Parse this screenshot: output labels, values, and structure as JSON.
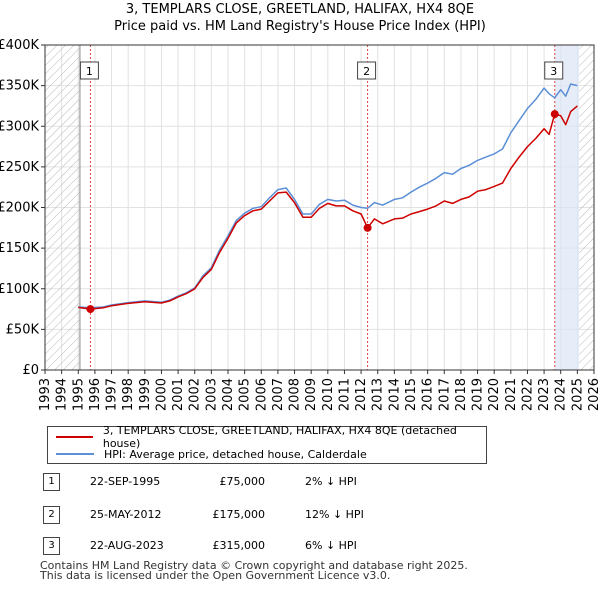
{
  "title_line1": "3, TEMPLARS CLOSE, GREETLAND, HALIFAX, HX4 8QE",
  "title_line2": "Price paid vs. HM Land Registry's House Price Index (HPI)",
  "chart_data": {
    "type": "line",
    "xlim": [
      1993,
      2026
    ],
    "ylim": [
      0,
      400000
    ],
    "y_ticks": [
      {
        "value": 0,
        "label": "£0"
      },
      {
        "value": 50000,
        "label": "£50K"
      },
      {
        "value": 100000,
        "label": "£100K"
      },
      {
        "value": 150000,
        "label": "£150K"
      },
      {
        "value": 200000,
        "label": "£200K"
      },
      {
        "value": 250000,
        "label": "£250K"
      },
      {
        "value": 300000,
        "label": "£300K"
      },
      {
        "value": 350000,
        "label": "£350K"
      },
      {
        "value": 400000,
        "label": "£400K"
      }
    ],
    "x_ticks": [
      1993,
      1994,
      1995,
      1996,
      1997,
      1998,
      1999,
      2000,
      2001,
      2002,
      2003,
      2004,
      2005,
      2006,
      2007,
      2008,
      2009,
      2010,
      2011,
      2012,
      2013,
      2014,
      2015,
      2016,
      2017,
      2018,
      2019,
      2020,
      2021,
      2022,
      2023,
      2024,
      2025,
      2026
    ],
    "x_tick_labels": [
      "1993",
      "1994",
      "1995",
      "1996",
      "1997",
      "1998",
      "1999",
      "2000",
      "2001",
      "2002",
      "2003",
      "2004",
      "2005",
      "2006",
      "2007",
      "2008",
      "2009",
      "2010",
      "2011",
      "2012",
      "2013",
      "2014",
      "2015",
      "2016",
      "2017",
      "2018",
      "2019",
      "2020",
      "2021",
      "2022",
      "2023",
      "2024",
      "2025",
      "2026"
    ],
    "hatched_ranges": [
      [
        1993,
        1995.1
      ],
      [
        2025.1,
        2026
      ]
    ],
    "shaded_range": [
      2023.64,
      2025.1
    ],
    "series": [
      {
        "name": "3, TEMPLARS CLOSE, GREETLAND, HALIFAX, HX4 8QE (detached house)",
        "color": "#cc0000",
        "x": [
          1995.0,
          1995.73,
          1996.5,
          1997.0,
          1998.0,
          1999.0,
          2000.0,
          2000.5,
          2001.0,
          2001.5,
          2002.0,
          2002.5,
          2003.0,
          2003.5,
          2004.0,
          2004.5,
          2005.0,
          2005.5,
          2006.0,
          2006.5,
          2007.0,
          2007.5,
          2008.0,
          2008.5,
          2009.0,
          2009.5,
          2010.0,
          2010.5,
          2011.0,
          2011.5,
          2012.0,
          2012.39,
          2012.8,
          2013.3,
          2014.0,
          2014.5,
          2015.0,
          2015.5,
          2016.0,
          2016.5,
          2017.0,
          2017.5,
          2018.0,
          2018.5,
          2019.0,
          2019.5,
          2020.0,
          2020.5,
          2021.0,
          2021.5,
          2022.0,
          2022.5,
          2023.0,
          2023.3,
          2023.64,
          2024.0,
          2024.3,
          2024.6,
          2025.0
        ],
        "values": [
          77000,
          75000,
          76500,
          79000,
          82000,
          84000,
          82500,
          85000,
          90000,
          94000,
          100000,
          114000,
          124000,
          145000,
          162000,
          181000,
          190000,
          196000,
          198000,
          208000,
          218000,
          219000,
          206000,
          188000,
          188000,
          199000,
          205000,
          202000,
          202000,
          196000,
          192000,
          175000,
          186000,
          180000,
          186000,
          187000,
          192000,
          195000,
          198000,
          202000,
          208000,
          205000,
          210000,
          213000,
          220000,
          222000,
          226000,
          230000,
          248000,
          262000,
          275000,
          285000,
          297000,
          290000,
          315000,
          313000,
          302000,
          318000,
          325000
        ]
      },
      {
        "name": "HPI: Average price, detached house, Calderdale",
        "color": "#5b8fd6",
        "x": [
          1995.0,
          1995.73,
          1996.5,
          1997.0,
          1998.0,
          1999.0,
          2000.0,
          2000.5,
          2001.0,
          2001.5,
          2002.0,
          2002.5,
          2003.0,
          2003.5,
          2004.0,
          2004.5,
          2005.0,
          2005.5,
          2006.0,
          2006.5,
          2007.0,
          2007.5,
          2008.0,
          2008.5,
          2009.0,
          2009.5,
          2010.0,
          2010.5,
          2011.0,
          2011.5,
          2012.0,
          2012.39,
          2012.8,
          2013.3,
          2014.0,
          2014.5,
          2015.0,
          2015.5,
          2016.0,
          2016.5,
          2017.0,
          2017.5,
          2018.0,
          2018.5,
          2019.0,
          2019.5,
          2020.0,
          2020.5,
          2021.0,
          2021.5,
          2022.0,
          2022.5,
          2023.0,
          2023.3,
          2023.64,
          2024.0,
          2024.3,
          2024.6,
          2025.0
        ],
        "values": [
          77500,
          76500,
          77500,
          80000,
          83000,
          85000,
          83500,
          86000,
          91000,
          95000,
          101000,
          116000,
          126000,
          148000,
          165000,
          184000,
          193000,
          199000,
          201000,
          212000,
          222000,
          224000,
          210000,
          192000,
          192000,
          204000,
          210000,
          208000,
          209000,
          203000,
          200000,
          199000,
          206000,
          203000,
          210000,
          212000,
          219000,
          225000,
          230000,
          236000,
          243000,
          241000,
          248000,
          252000,
          258000,
          262000,
          266000,
          272000,
          292000,
          307000,
          322000,
          333000,
          347000,
          340000,
          335000,
          345000,
          337000,
          352000,
          350000
        ]
      }
    ],
    "transactions": [
      {
        "id": "1",
        "x": 1995.73,
        "value": 75000
      },
      {
        "id": "2",
        "x": 2012.39,
        "value": 175000
      },
      {
        "id": "3",
        "x": 2023.64,
        "value": 315000
      }
    ]
  },
  "legend": {
    "red_label": "3, TEMPLARS CLOSE, GREETLAND, HALIFAX, HX4 8QE (detached house)",
    "blue_label": "HPI: Average price, detached house, Calderdale"
  },
  "table": [
    {
      "id": "1",
      "date": "22-SEP-1995",
      "price": "£75,000",
      "hpi": "2% ↓ HPI"
    },
    {
      "id": "2",
      "date": "25-MAY-2012",
      "price": "£175,000",
      "hpi": "12% ↓ HPI"
    },
    {
      "id": "3",
      "date": "22-AUG-2023",
      "price": "£315,000",
      "hpi": "6% ↓ HPI"
    }
  ],
  "footer": {
    "line1": "Contains HM Land Registry data © Crown copyright and database right 2025.",
    "line2": "This data is licensed under the Open Government Licence v3.0."
  }
}
